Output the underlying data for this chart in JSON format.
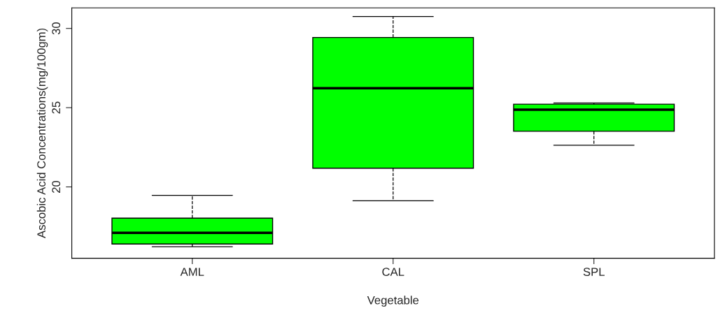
{
  "chart_data": {
    "type": "box",
    "xlabel": "Vegetable",
    "ylabel": "Ascobic Acid Concentrations(mg/100gm)",
    "categories": [
      "AML",
      "CAL",
      "SPL"
    ],
    "color": "#00ff00",
    "boxes": [
      {
        "low": 16.23,
        "q1": 16.4,
        "median": 17.1,
        "q3": 18.03,
        "high": 19.47
      },
      {
        "low": 19.12,
        "q1": 21.18,
        "median": 26.23,
        "q3": 29.43,
        "high": 30.75
      },
      {
        "low": 22.63,
        "q1": 23.51,
        "median": 24.87,
        "q3": 25.22,
        "high": 25.3
      }
    ],
    "ylim": [
      15.5,
      31.3
    ],
    "yticks": [
      20,
      25,
      30
    ],
    "grid": false,
    "line_style": "dashed"
  }
}
